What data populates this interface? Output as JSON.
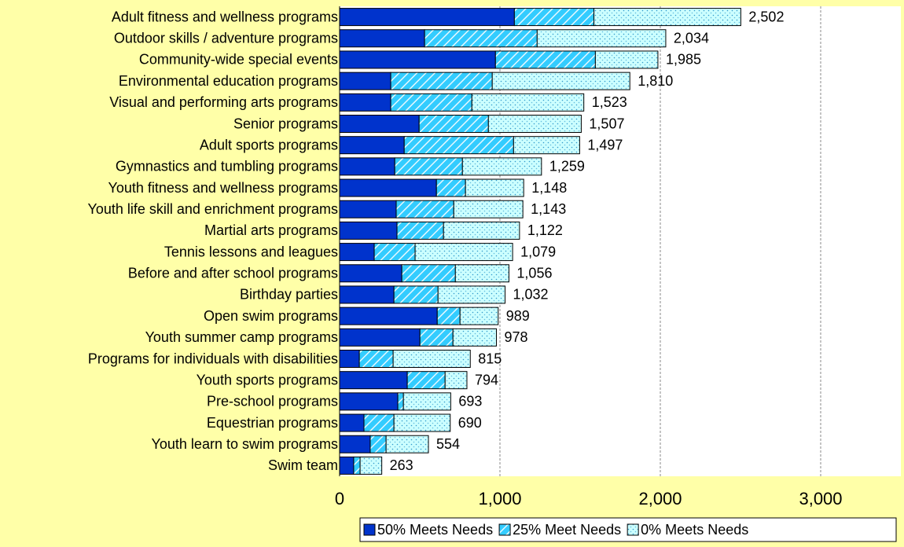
{
  "chart_data": {
    "type": "stacked-bar-horizontal",
    "categories": [
      "Adult fitness and wellness programs",
      "Outdoor skills / adventure programs",
      "Community-wide special events",
      "Environmental education programs",
      "Visual and performing arts programs",
      "Senior programs",
      "Adult sports programs",
      "Gymnastics and tumbling programs",
      "Youth fitness and wellness programs",
      "Youth life skill and enrichment programs",
      "Martial arts programs",
      "Tennis lessons and leagues",
      "Before and after school programs",
      "Birthday parties",
      "Open swim programs",
      "Youth summer camp programs",
      "Programs for individuals with disabilities",
      "Youth sports programs",
      "Pre-school programs",
      "Equestrian programs",
      "Youth learn to swim programs",
      "Swim team"
    ],
    "series": [
      {
        "name": "50% Meets Needs",
        "color": "#0033cc",
        "values": [
          1090,
          530,
          972,
          319,
          319,
          496,
          403,
          344,
          604,
          353,
          358,
          216,
          388,
          339,
          609,
          501,
          123,
          422,
          363,
          152,
          191,
          88
        ]
      },
      {
        "name": "25% Meet Needs",
        "color": "#33ccff",
        "values": [
          496,
          702,
          623,
          633,
          506,
          432,
          682,
          422,
          181,
          359,
          290,
          255,
          334,
          275,
          142,
          206,
          211,
          236,
          35,
          187,
          99,
          40
        ]
      },
      {
        "name": "0% Meets Needs",
        "color": "#ccffff",
        "values": [
          916,
          802,
          390,
          858,
          698,
          579,
          412,
          493,
          363,
          431,
          474,
          608,
          334,
          418,
          238,
          271,
          481,
          136,
          295,
          351,
          264,
          135
        ]
      }
    ],
    "total_labels": [
      "2,502",
      "2,034",
      "1,985",
      "1,810",
      "1,523",
      "1,507",
      "1,497",
      "1,259",
      "1,148",
      "1,143",
      "1,122",
      "1,079",
      "1,056",
      "1,032",
      "989",
      "978",
      "815",
      "794",
      "693",
      "690",
      "554",
      "263"
    ],
    "xlim": [
      0,
      3500
    ],
    "xticks": [
      0,
      {
        "value": 1000,
        "label": "1,000"
      },
      {
        "value": 2000,
        "label": "2,000"
      },
      {
        "value": 3000,
        "label": "3,000"
      }
    ],
    "grid": true,
    "legend": "bottom-right"
  }
}
